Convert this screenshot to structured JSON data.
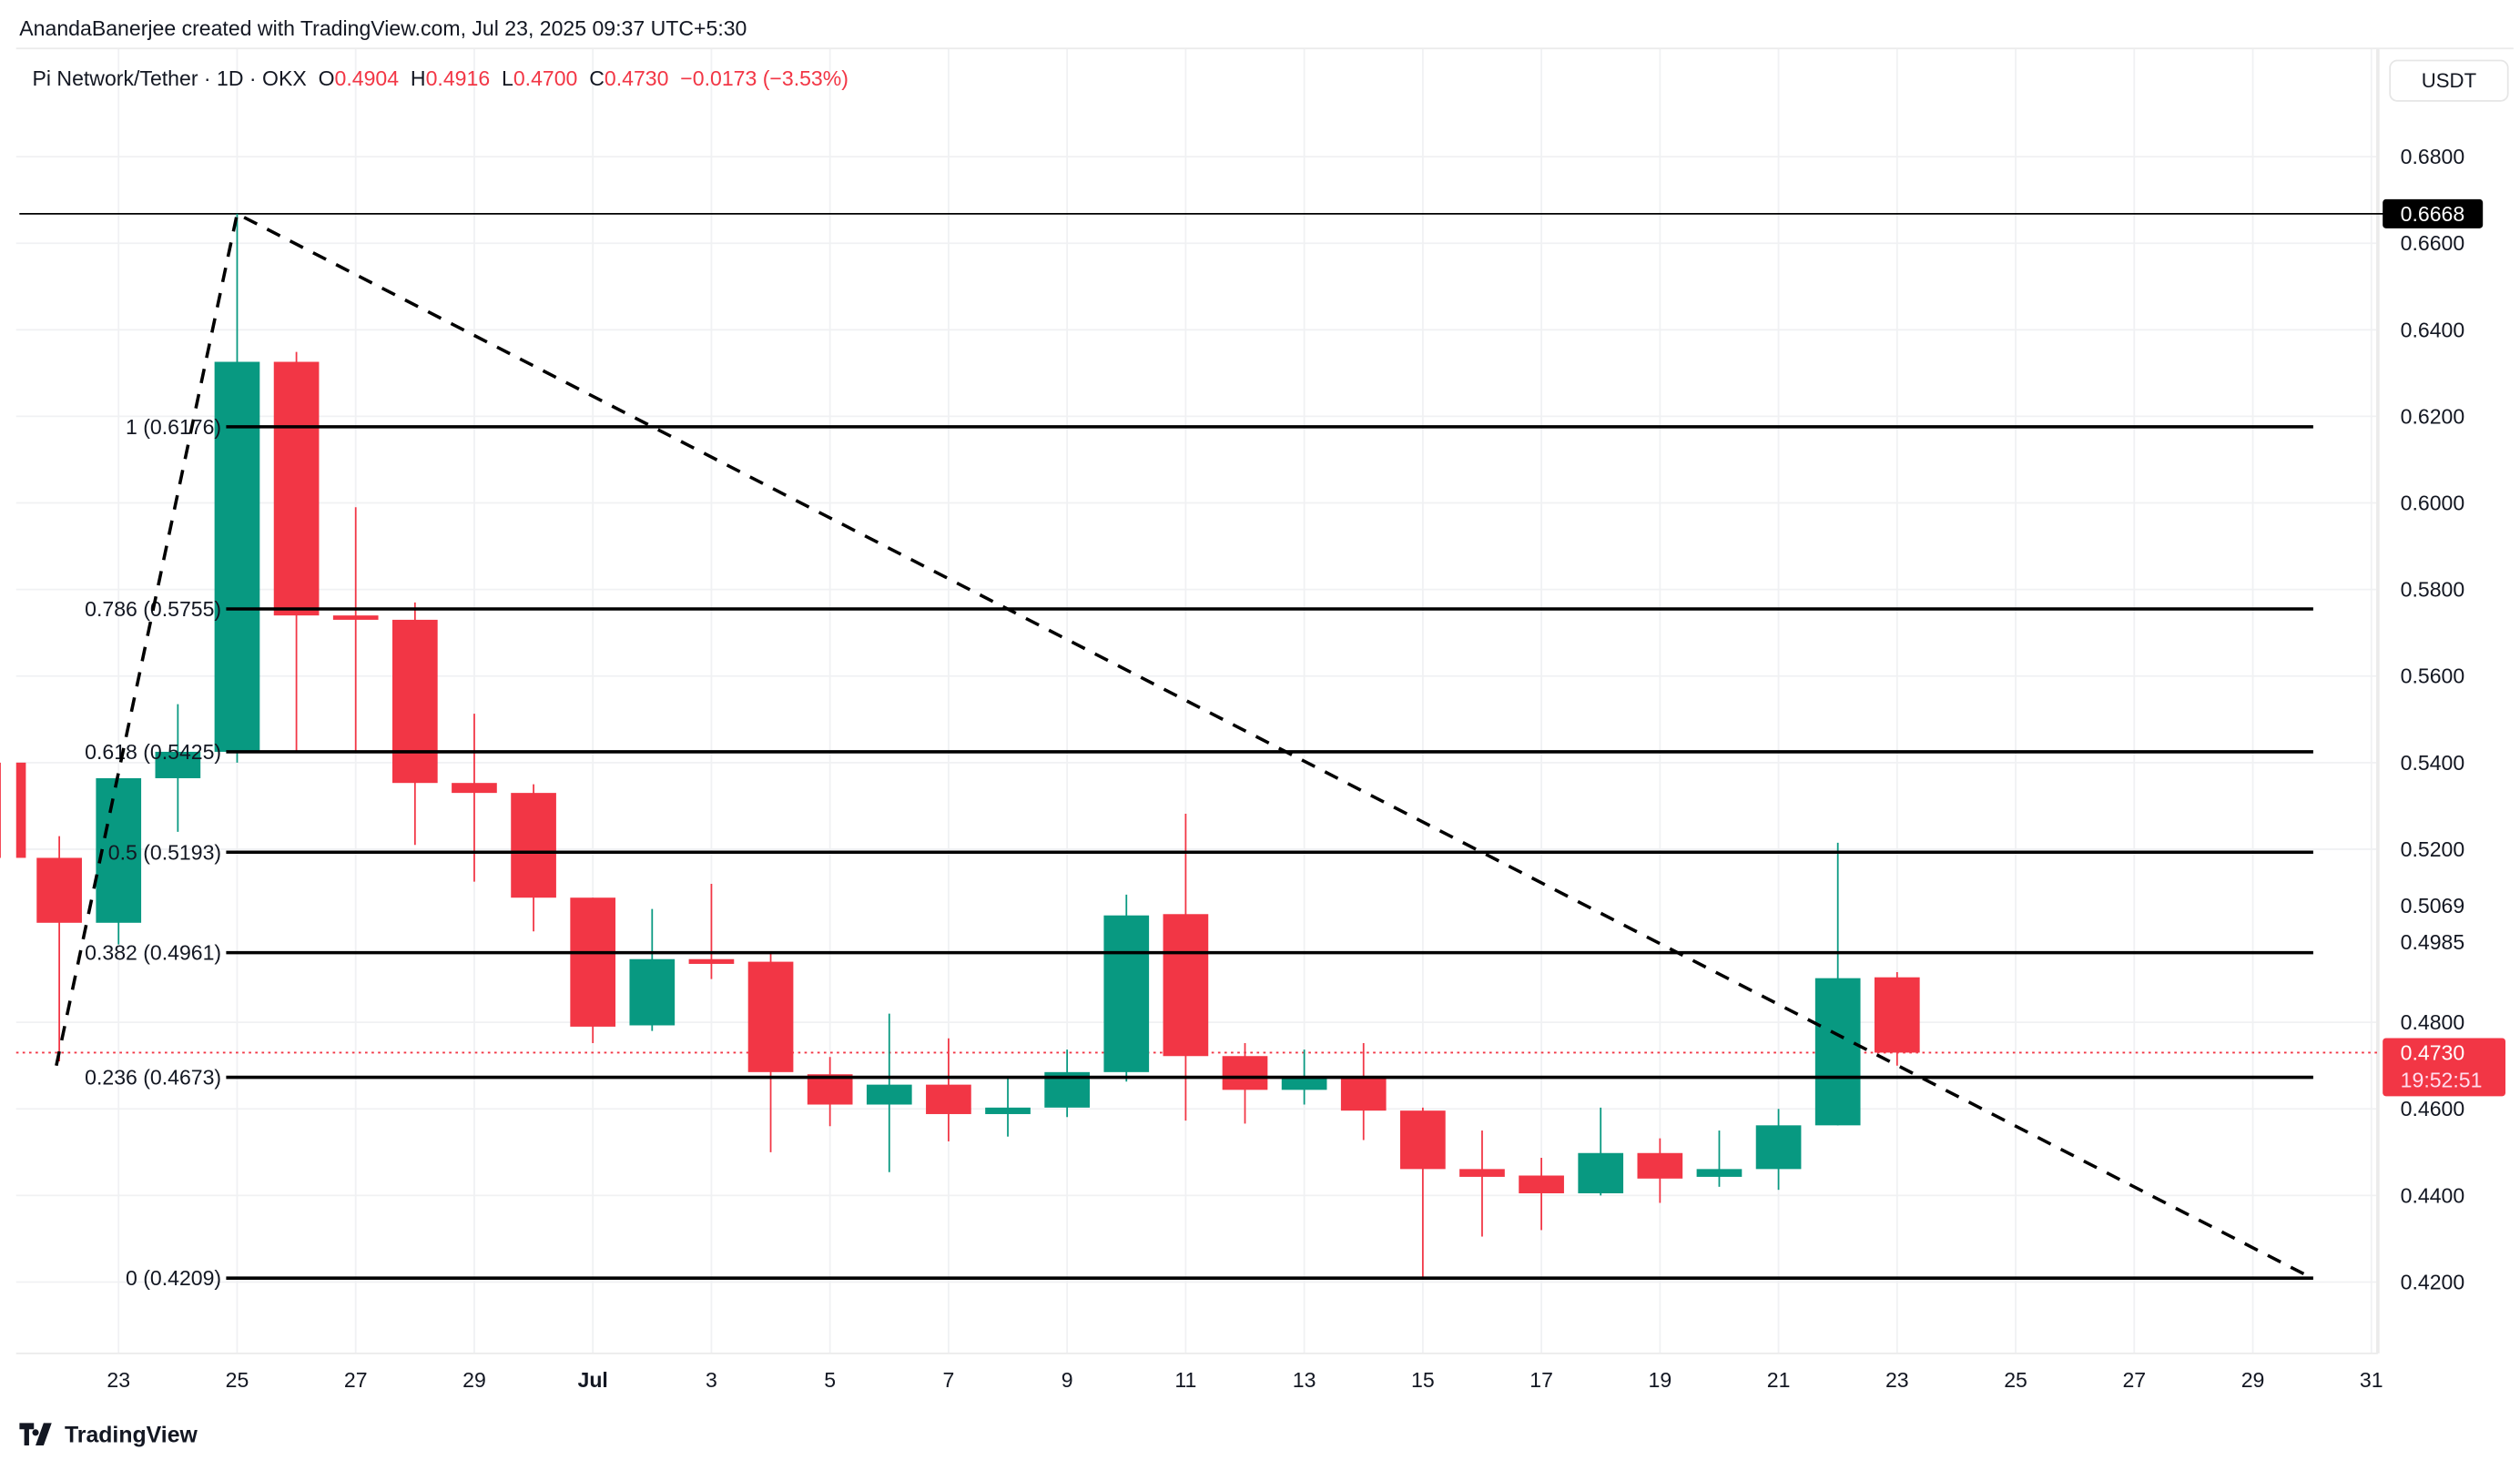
{
  "header": {
    "credit": "AnandaBanerjee created with TradingView.com, Jul 23, 2025 09:37 UTC+5:30",
    "symbol": "Pi Network/Tether · 1D · OKX",
    "o_label": "O",
    "o": "0.4904",
    "h_label": "H",
    "h": "0.4916",
    "l_label": "L",
    "l": "0.4700",
    "c_label": "C",
    "c": "0.4730",
    "change": "−0.0173 (−3.53%)"
  },
  "currency_button": "USDT",
  "footer": {
    "brand": "TradingView"
  },
  "colors": {
    "up": "#089981",
    "down": "#f23645",
    "line": "#000000",
    "grid": "#f0f3fa"
  },
  "chart_data": {
    "type": "candlestick",
    "title": "Pi Network/Tether · 1D · OKX",
    "ylim": [
      0.404,
      0.6862
    ],
    "x_ticks": [
      {
        "day": 1,
        "label": "23"
      },
      {
        "day": 3,
        "label": "25"
      },
      {
        "day": 5,
        "label": "27"
      },
      {
        "day": 7,
        "label": "29"
      },
      {
        "day": 9,
        "label": "Jul",
        "bold": true
      },
      {
        "day": 11,
        "label": "3"
      },
      {
        "day": 13,
        "label": "5"
      },
      {
        "day": 15,
        "label": "7"
      },
      {
        "day": 17,
        "label": "9"
      },
      {
        "day": 19,
        "label": "11"
      },
      {
        "day": 21,
        "label": "13"
      },
      {
        "day": 23,
        "label": "15"
      },
      {
        "day": 25,
        "label": "17"
      },
      {
        "day": 27,
        "label": "19"
      },
      {
        "day": 29,
        "label": "21"
      },
      {
        "day": 31,
        "label": "23"
      },
      {
        "day": 33,
        "label": "25"
      },
      {
        "day": 35,
        "label": "27"
      },
      {
        "day": 37,
        "label": "29"
      },
      {
        "day": 39,
        "label": "31"
      }
    ],
    "y_ticks": [
      "0.6800",
      "0.6600",
      "0.6400",
      "0.6200",
      "0.6000",
      "0.5800",
      "0.5600",
      "0.5400",
      "0.5200",
      "0.5069",
      "0.4985",
      "0.4800",
      "0.4600",
      "0.4400",
      "0.4200"
    ],
    "candles": [
      {
        "date": "Jun 21",
        "o": 0.54,
        "h": 0.54,
        "l": 0.518,
        "c": 0.518
      },
      {
        "date": "Jun 22",
        "o": 0.518,
        "h": 0.523,
        "l": 0.471,
        "c": 0.503
      },
      {
        "date": "Jun 23",
        "o": 0.503,
        "h": 0.5364,
        "l": 0.498,
        "c": 0.5364
      },
      {
        "date": "Jun 24",
        "o": 0.5364,
        "h": 0.5535,
        "l": 0.524,
        "c": 0.5425
      },
      {
        "date": "Jun 25",
        "o": 0.5425,
        "h": 0.6668,
        "l": 0.54,
        "c": 0.6326
      },
      {
        "date": "Jun 26",
        "o": 0.6326,
        "h": 0.6349,
        "l": 0.5425,
        "c": 0.574
      },
      {
        "date": "Jun 27",
        "o": 0.574,
        "h": 0.599,
        "l": 0.5425,
        "c": 0.573
      },
      {
        "date": "Jun 28",
        "o": 0.573,
        "h": 0.577,
        "l": 0.521,
        "c": 0.5353
      },
      {
        "date": "Jun 29",
        "o": 0.5353,
        "h": 0.5513,
        "l": 0.5125,
        "c": 0.533
      },
      {
        "date": "Jun 30",
        "o": 0.533,
        "h": 0.535,
        "l": 0.501,
        "c": 0.5088
      },
      {
        "date": "Jul 1",
        "o": 0.5088,
        "h": 0.5088,
        "l": 0.4752,
        "c": 0.479
      },
      {
        "date": "Jul 2",
        "o": 0.4793,
        "h": 0.5062,
        "l": 0.478,
        "c": 0.4946
      },
      {
        "date": "Jul 3",
        "o": 0.4946,
        "h": 0.512,
        "l": 0.49,
        "c": 0.4935
      },
      {
        "date": "Jul 4",
        "o": 0.494,
        "h": 0.496,
        "l": 0.45,
        "c": 0.4685
      },
      {
        "date": "Jul 5",
        "o": 0.468,
        "h": 0.472,
        "l": 0.456,
        "c": 0.461
      },
      {
        "date": "Jul 6",
        "o": 0.461,
        "h": 0.482,
        "l": 0.4454,
        "c": 0.4656
      },
      {
        "date": "Jul 7",
        "o": 0.4656,
        "h": 0.4763,
        "l": 0.4525,
        "c": 0.4588
      },
      {
        "date": "Jul 8",
        "o": 0.4588,
        "h": 0.4674,
        "l": 0.4536,
        "c": 0.4603
      },
      {
        "date": "Jul 9",
        "o": 0.4603,
        "h": 0.4737,
        "l": 0.4581,
        "c": 0.4685
      },
      {
        "date": "Jul 10",
        "o": 0.4685,
        "h": 0.5095,
        "l": 0.4663,
        "c": 0.5047
      },
      {
        "date": "Jul 11",
        "o": 0.505,
        "h": 0.5282,
        "l": 0.4573,
        "c": 0.4722
      },
      {
        "date": "Jul 12",
        "o": 0.4722,
        "h": 0.4752,
        "l": 0.4566,
        "c": 0.4644
      },
      {
        "date": "Jul 13",
        "o": 0.4644,
        "h": 0.4737,
        "l": 0.461,
        "c": 0.4674
      },
      {
        "date": "Jul 14",
        "o": 0.4674,
        "h": 0.4752,
        "l": 0.4528,
        "c": 0.4596
      },
      {
        "date": "Jul 15",
        "o": 0.4596,
        "h": 0.4603,
        "l": 0.4208,
        "c": 0.4461
      },
      {
        "date": "Jul 16",
        "o": 0.4461,
        "h": 0.455,
        "l": 0.4305,
        "c": 0.4443
      },
      {
        "date": "Jul 17",
        "o": 0.4446,
        "h": 0.4487,
        "l": 0.432,
        "c": 0.4405
      },
      {
        "date": "Jul 18",
        "o": 0.4405,
        "h": 0.4603,
        "l": 0.44,
        "c": 0.4498
      },
      {
        "date": "Jul 19",
        "o": 0.4498,
        "h": 0.4532,
        "l": 0.4383,
        "c": 0.4439
      },
      {
        "date": "Jul 20",
        "o": 0.4443,
        "h": 0.455,
        "l": 0.442,
        "c": 0.4461
      },
      {
        "date": "Jul 21",
        "o": 0.4461,
        "h": 0.46,
        "l": 0.4413,
        "c": 0.4562
      },
      {
        "date": "Jul 22",
        "o": 0.4562,
        "h": 0.5215,
        "l": 0.4562,
        "c": 0.4902
      },
      {
        "date": "Jul 23",
        "o": 0.4904,
        "h": 0.4916,
        "l": 0.47,
        "c": 0.473
      }
    ],
    "fib_levels": [
      {
        "ratio": "1",
        "price": 0.6176,
        "label": "1 (0.6176)"
      },
      {
        "ratio": "0.786",
        "price": 0.5755,
        "label": "0.786 (0.5755)"
      },
      {
        "ratio": "0.618",
        "price": 0.5425,
        "label": "0.618 (0.5425)"
      },
      {
        "ratio": "0.5",
        "price": 0.5193,
        "label": "0.5 (0.5193)"
      },
      {
        "ratio": "0.382",
        "price": 0.4961,
        "label": "0.382 (0.4961)"
      },
      {
        "ratio": "0.236",
        "price": 0.4673,
        "label": "0.236 (0.4673)"
      },
      {
        "ratio": "0",
        "price": 0.4209,
        "label": "0 (0.4209)"
      }
    ],
    "high_line": {
      "price": 0.6668,
      "label": "0.6668"
    },
    "last_price": {
      "price": 0.473,
      "label": "0.4730",
      "countdown": "19:52:51"
    },
    "trend_line": [
      {
        "day": -0.05,
        "price": 0.47
      },
      {
        "day": 3,
        "price": 0.6668
      },
      {
        "day": 38,
        "price": 0.4209
      }
    ]
  }
}
